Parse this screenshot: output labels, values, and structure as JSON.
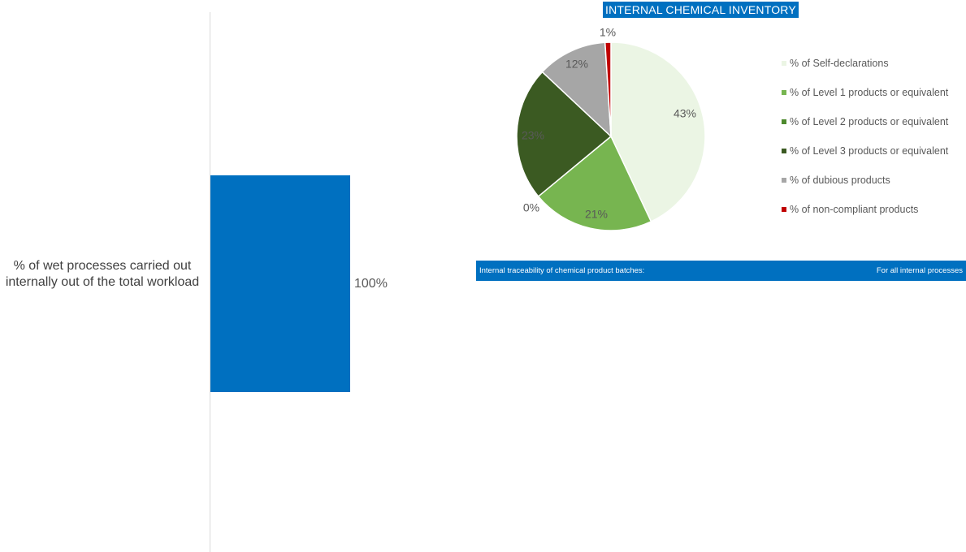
{
  "chart_data": [
    {
      "type": "bar",
      "orientation": "horizontal",
      "categories": [
        "% of wet processes carried out internally out of the total workload"
      ],
      "values": [
        100
      ],
      "data_labels": [
        "100%"
      ],
      "xlim": [
        0,
        100
      ],
      "grid": false,
      "colors": [
        "#0070c0"
      ]
    },
    {
      "type": "pie",
      "title": "INTERNAL CHEMICAL INVENTORY",
      "legend_position": "right",
      "slices": [
        {
          "name": "% of Self-declarations",
          "value": 43,
          "label": "43%",
          "color": "#ebf5e4"
        },
        {
          "name": "% of Level 1 products or equivalent",
          "value": 21,
          "label": "21%",
          "color": "#77b550"
        },
        {
          "name": "% of Level 2 products or equivalent",
          "value": 0,
          "label": "0%",
          "color": "#4e8a2e"
        },
        {
          "name": "% of Level 3 products or equivalent",
          "value": 23,
          "label": "23%",
          "color": "#3b5a22"
        },
        {
          "name": "% of dubious products",
          "value": 12,
          "label": "12%",
          "color": "#a6a6a6"
        },
        {
          "name": "% of non-compliant products",
          "value": 1,
          "label": "1%",
          "color": "#c00000"
        }
      ]
    }
  ],
  "traceability": {
    "label": "Internal traceability of chemical product batches:",
    "value": "For all internal processes"
  },
  "colors": {
    "accent": "#0070c0",
    "axis": "#d9d9d9"
  }
}
